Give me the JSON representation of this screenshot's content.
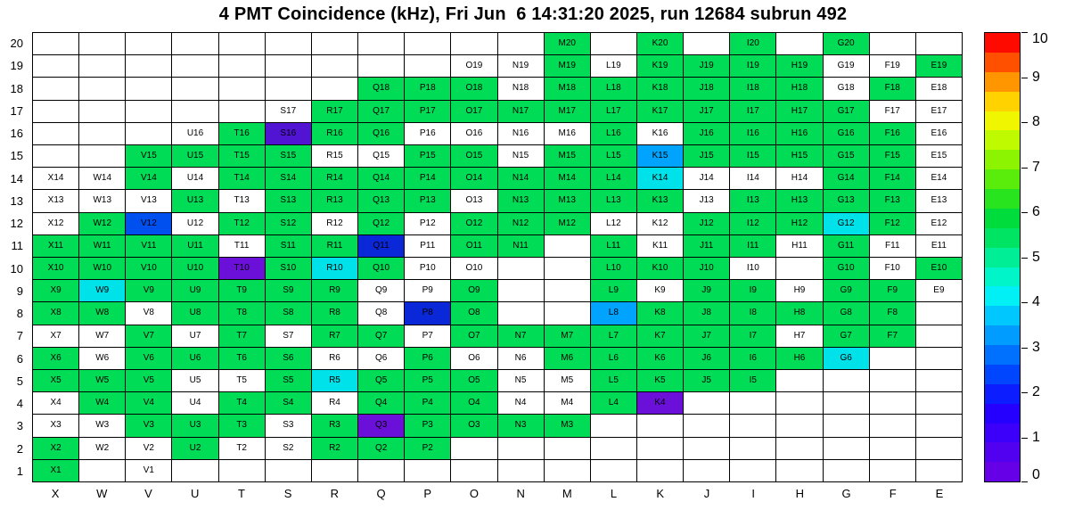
{
  "title": "4 PMT Coincidence (kHz), Fri Jun  6 14:31:20 2025, run 12684 subrun 492",
  "chart_data": {
    "type": "heatmap",
    "title": "4 PMT Coincidence (kHz), Fri Jun  6 14:31:20 2025, run 12684 subrun 492",
    "units": "kHz",
    "x_categories": [
      "X",
      "W",
      "V",
      "U",
      "T",
      "S",
      "R",
      "Q",
      "P",
      "O",
      "N",
      "M",
      "L",
      "K",
      "J",
      "I",
      "H",
      "G",
      "F",
      "E"
    ],
    "cell_label_format": "{column}{row}",
    "color_levels": {
      "g": {
        "name": "green",
        "hex": "#00dc55",
        "approx_value_khz": 5.0
      },
      "c": {
        "name": "cyan",
        "hex": "#00e2ea",
        "approx_value_khz": 4.0
      },
      "lb": {
        "name": "light-blue",
        "hex": "#00a4ff",
        "approx_value_khz": 3.0
      },
      "b": {
        "name": "blue",
        "hex": "#0050f0",
        "approx_value_khz": 2.5
      },
      "db": {
        "name": "dark-blue",
        "hex": "#0a28d8",
        "approx_value_khz": 1.6
      },
      "v": {
        "name": "violet",
        "hex": "#5014d2",
        "approx_value_khz": 1.0
      },
      "p": {
        "name": "purple",
        "hex": "#6a10d8",
        "approx_value_khz": 0.8
      },
      "w": {
        "name": "white-labeled",
        "hex": "#ffffff",
        "approx_value_khz": 0
      },
      "": {
        "name": "empty",
        "hex": "#ffffff",
        "approx_value_khz": null
      }
    },
    "grid_rows_top_to_bottom": [
      {
        "row": 20,
        "cells": [
          "",
          "",
          "",
          "",
          "",
          "",
          "",
          "",
          "",
          "",
          "",
          "g",
          "",
          "g",
          "",
          "g",
          "",
          "g",
          "",
          ""
        ]
      },
      {
        "row": 19,
        "cells": [
          "",
          "",
          "",
          "",
          "",
          "",
          "",
          "",
          "",
          "w",
          "w",
          "g",
          "w",
          "g",
          "g",
          "g",
          "g",
          "w",
          "w",
          "g"
        ]
      },
      {
        "row": 18,
        "cells": [
          "",
          "",
          "",
          "",
          "",
          "",
          "",
          "g",
          "g",
          "g",
          "w",
          "g",
          "g",
          "g",
          "g",
          "g",
          "g",
          "w",
          "g",
          "w"
        ]
      },
      {
        "row": 17,
        "cells": [
          "",
          "",
          "",
          "",
          "",
          "w",
          "g",
          "g",
          "g",
          "g",
          "g",
          "g",
          "g",
          "g",
          "g",
          "g",
          "g",
          "g",
          "w",
          "w"
        ]
      },
      {
        "row": 16,
        "cells": [
          "",
          "",
          "",
          "w",
          "g",
          "v",
          "g",
          "g",
          "w",
          "w",
          "w",
          "w",
          "g",
          "w",
          "g",
          "g",
          "g",
          "g",
          "g",
          "w"
        ]
      },
      {
        "row": 15,
        "cells": [
          "",
          "",
          "g",
          "g",
          "g",
          "g",
          "w",
          "w",
          "g",
          "g",
          "w",
          "g",
          "g",
          "lb",
          "g",
          "g",
          "g",
          "g",
          "g",
          "w"
        ]
      },
      {
        "row": 14,
        "cells": [
          "w",
          "w",
          "g",
          "w",
          "g",
          "g",
          "g",
          "g",
          "g",
          "g",
          "g",
          "g",
          "g",
          "c",
          "w",
          "w",
          "w",
          "g",
          "g",
          "w"
        ]
      },
      {
        "row": 13,
        "cells": [
          "w",
          "w",
          "w",
          "g",
          "w",
          "g",
          "g",
          "g",
          "g",
          "w",
          "g",
          "g",
          "g",
          "g",
          "w",
          "g",
          "g",
          "g",
          "g",
          "w"
        ]
      },
      {
        "row": 12,
        "cells": [
          "w",
          "g",
          "b",
          "w",
          "g",
          "g",
          "w",
          "g",
          "w",
          "g",
          "g",
          "g",
          "w",
          "w",
          "g",
          "g",
          "g",
          "c",
          "g",
          "w"
        ]
      },
      {
        "row": 11,
        "cells": [
          "g",
          "g",
          "g",
          "g",
          "w",
          "g",
          "g",
          "db",
          "w",
          "g",
          "g",
          "",
          "g",
          "w",
          "g",
          "g",
          "w",
          "g",
          "w",
          "w"
        ]
      },
      {
        "row": 10,
        "cells": [
          "g",
          "g",
          "g",
          "g",
          "p",
          "g",
          "c",
          "g",
          "w",
          "w",
          "",
          "",
          "g",
          "g",
          "g",
          "w",
          "",
          "g",
          "w",
          "g"
        ]
      },
      {
        "row": 9,
        "cells": [
          "g",
          "c",
          "g",
          "g",
          "g",
          "g",
          "g",
          "w",
          "w",
          "g",
          "",
          "",
          "g",
          "w",
          "g",
          "g",
          "w",
          "g",
          "g",
          "w"
        ]
      },
      {
        "row": 8,
        "cells": [
          "g",
          "g",
          "w",
          "g",
          "g",
          "g",
          "g",
          "w",
          "db",
          "g",
          "",
          "",
          "lb",
          "g",
          "g",
          "g",
          "g",
          "g",
          "g",
          ""
        ]
      },
      {
        "row": 7,
        "cells": [
          "w",
          "w",
          "g",
          "w",
          "g",
          "w",
          "g",
          "g",
          "w",
          "g",
          "g",
          "g",
          "g",
          "g",
          "g",
          "g",
          "w",
          "g",
          "g",
          ""
        ]
      },
      {
        "row": 6,
        "cells": [
          "g",
          "w",
          "g",
          "g",
          "g",
          "g",
          "w",
          "w",
          "g",
          "w",
          "w",
          "g",
          "g",
          "g",
          "g",
          "g",
          "g",
          "c",
          "",
          ""
        ]
      },
      {
        "row": 5,
        "cells": [
          "g",
          "g",
          "g",
          "w",
          "w",
          "g",
          "c",
          "g",
          "g",
          "g",
          "w",
          "w",
          "g",
          "g",
          "g",
          "g",
          "",
          "",
          "",
          ""
        ]
      },
      {
        "row": 4,
        "cells": [
          "w",
          "g",
          "g",
          "w",
          "g",
          "g",
          "w",
          "g",
          "g",
          "g",
          "w",
          "w",
          "g",
          "p",
          "",
          "",
          "",
          "",
          "",
          ""
        ]
      },
      {
        "row": 3,
        "cells": [
          "w",
          "w",
          "g",
          "g",
          "g",
          "w",
          "g",
          "p",
          "g",
          "g",
          "g",
          "g",
          "",
          "",
          "",
          "",
          "",
          "",
          "",
          ""
        ]
      },
      {
        "row": 2,
        "cells": [
          "g",
          "w",
          "w",
          "g",
          "w",
          "w",
          "g",
          "g",
          "g",
          "",
          "",
          "",
          "",
          "",
          "",
          "",
          "",
          "",
          "",
          ""
        ]
      },
      {
        "row": 1,
        "cells": [
          "g",
          "",
          "w",
          "",
          "",
          "",
          "",
          "",
          "",
          "",
          "",
          "",
          "",
          "",
          "",
          "",
          "",
          "",
          "",
          ""
        ]
      }
    ],
    "colorbar": {
      "min": 0,
      "max": 10,
      "ticks": [
        0,
        1,
        2,
        3,
        4,
        5,
        6,
        7,
        8,
        9,
        10
      ],
      "colors_bottom_to_top": [
        "#6600e6",
        "#5200f0",
        "#3c00fa",
        "#2600ff",
        "#0c1eff",
        "#0046ff",
        "#0070ff",
        "#009cff",
        "#00c8ff",
        "#00f0f6",
        "#00f6c8",
        "#00ee96",
        "#00e464",
        "#00dc3c",
        "#28e41e",
        "#5aec0a",
        "#8cf400",
        "#c0fa00",
        "#f0f600",
        "#ffd200",
        "#ff9600",
        "#ff5000",
        "#ff0a00"
      ]
    },
    "legend_position": "right",
    "grid_lines": true
  }
}
